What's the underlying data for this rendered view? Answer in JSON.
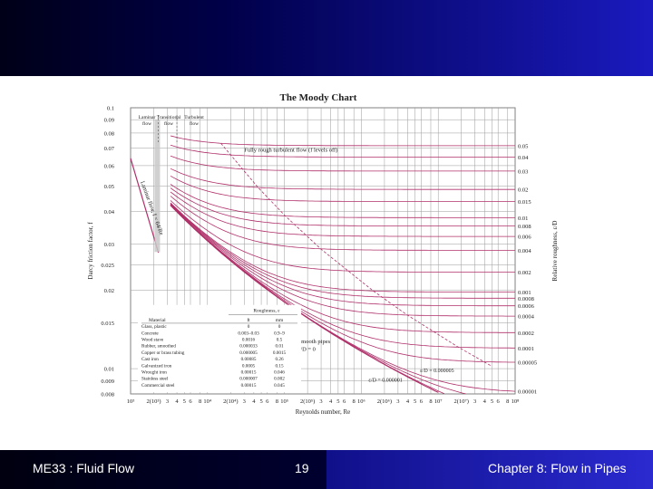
{
  "footer": {
    "course": "ME33 : Fluid Flow",
    "page_number": "19",
    "chapter": "Chapter 8: Flow in Pipes"
  },
  "colors": {
    "curve": "#b0306a",
    "grid": "#9a9a9a",
    "banner": "#1a1abf"
  },
  "chart_data": {
    "type": "line",
    "title": "The Moody Chart",
    "xlabel": "Reynolds number, Re",
    "ylabel": "Darcy friction factor, f",
    "y2label": "Relative roughness, ε/D",
    "xscale": "log",
    "yscale": "log",
    "xlim": [
      1000,
      100000000
    ],
    "ylim": [
      0.008,
      0.1
    ],
    "grid": true,
    "x_ticks": [
      {
        "v": 1000,
        "l": "10³"
      },
      {
        "v": 2000,
        "l": "2(10³)"
      },
      {
        "v": 3000,
        "l": "3"
      },
      {
        "v": 4000,
        "l": "4"
      },
      {
        "v": 5000,
        "l": "5"
      },
      {
        "v": 6000,
        "l": "6"
      },
      {
        "v": 8000,
        "l": "8"
      },
      {
        "v": 10000,
        "l": "10⁴"
      },
      {
        "v": 20000,
        "l": "2(10⁴)"
      },
      {
        "v": 30000,
        "l": "3"
      },
      {
        "v": 40000,
        "l": "4"
      },
      {
        "v": 50000,
        "l": "5"
      },
      {
        "v": 60000,
        "l": "6"
      },
      {
        "v": 80000,
        "l": "8"
      },
      {
        "v": 100000,
        "l": "10⁵"
      },
      {
        "v": 200000,
        "l": "2(10⁵)"
      },
      {
        "v": 300000,
        "l": "3"
      },
      {
        "v": 400000,
        "l": "4"
      },
      {
        "v": 500000,
        "l": "5"
      },
      {
        "v": 600000,
        "l": "6"
      },
      {
        "v": 800000,
        "l": "8"
      },
      {
        "v": 1000000,
        "l": "10⁶"
      },
      {
        "v": 2000000,
        "l": "2(10⁶)"
      },
      {
        "v": 3000000,
        "l": "3"
      },
      {
        "v": 4000000,
        "l": "4"
      },
      {
        "v": 5000000,
        "l": "5"
      },
      {
        "v": 6000000,
        "l": "6"
      },
      {
        "v": 8000000,
        "l": "8"
      },
      {
        "v": 10000000,
        "l": "10⁷"
      },
      {
        "v": 20000000,
        "l": "2(10⁷)"
      },
      {
        "v": 30000000,
        "l": "3"
      },
      {
        "v": 40000000,
        "l": "4"
      },
      {
        "v": 50000000,
        "l": "5"
      },
      {
        "v": 60000000,
        "l": "6"
      },
      {
        "v": 80000000,
        "l": "8"
      },
      {
        "v": 100000000,
        "l": "10⁸"
      }
    ],
    "y_ticks": [
      {
        "v": 0.1,
        "l": "0.1"
      },
      {
        "v": 0.09,
        "l": "0.09"
      },
      {
        "v": 0.08,
        "l": "0.08"
      },
      {
        "v": 0.07,
        "l": "0.07"
      },
      {
        "v": 0.06,
        "l": "0.06"
      },
      {
        "v": 0.05,
        "l": "0.05"
      },
      {
        "v": 0.04,
        "l": "0.04"
      },
      {
        "v": 0.03,
        "l": "0.03"
      },
      {
        "v": 0.025,
        "l": "0.025"
      },
      {
        "v": 0.02,
        "l": "0.02"
      },
      {
        "v": 0.015,
        "l": "0.015"
      },
      {
        "v": 0.01,
        "l": "0.01"
      },
      {
        "v": 0.009,
        "l": "0.009"
      },
      {
        "v": 0.008,
        "l": "0.008"
      }
    ],
    "roughness_curves": [
      0.05,
      0.04,
      0.03,
      0.02,
      0.015,
      0.01,
      0.008,
      0.006,
      0.004,
      0.002,
      0.001,
      0.0008,
      0.0006,
      0.0004,
      0.0002,
      0.0001,
      5e-05,
      1e-05,
      5e-06,
      1e-06
    ],
    "right_labels": [
      "0.05",
      "0.04",
      "0.03",
      "0.02",
      "0.015",
      "0.01",
      "0.008",
      "0.006",
      "0.004",
      "0.002",
      "0.001",
      "0.0008",
      "0.0006",
      "0.0004",
      "0.0002",
      "0.0001",
      "0.00005",
      "0.00001"
    ],
    "laminar_label": "Laminar flow, f = 64/Re",
    "regime_labels": [
      {
        "text": "Laminar",
        "sub": "flow"
      },
      {
        "text": "Transitional",
        "sub": "flow"
      },
      {
        "text": "Turbulent",
        "sub": "flow"
      }
    ],
    "annotations": {
      "fully_rough": "Fully rough turbulent flow (f levels off)",
      "smooth_pipes": "Smooth pipes",
      "smooth_eq": "ε/D = 0",
      "eps_5e6": "ε/D = 0.000005",
      "eps_1e6": "ε/D = 0.000001"
    },
    "table": {
      "caption": "Roughness, ε",
      "headers": [
        "Material",
        "ft",
        "mm"
      ],
      "rows": [
        [
          "Glass, plastic",
          "0",
          "0"
        ],
        [
          "Concrete",
          "0.003–0.03",
          "0.9–9"
        ],
        [
          "Wood stave",
          "0.0016",
          "0.5"
        ],
        [
          "Rubber, smoothed",
          "0.000033",
          "0.01"
        ],
        [
          "Copper or brass tubing",
          "0.000005",
          "0.0015"
        ],
        [
          "Cast iron",
          "0.00085",
          "0.26"
        ],
        [
          "Galvanized iron",
          "0.0005",
          "0.15"
        ],
        [
          "Wrought iron",
          "0.00015",
          "0.046"
        ],
        [
          "Stainless steel",
          "0.000007",
          "0.002"
        ],
        [
          "Commercial steel",
          "0.00015",
          "0.045"
        ]
      ]
    }
  }
}
